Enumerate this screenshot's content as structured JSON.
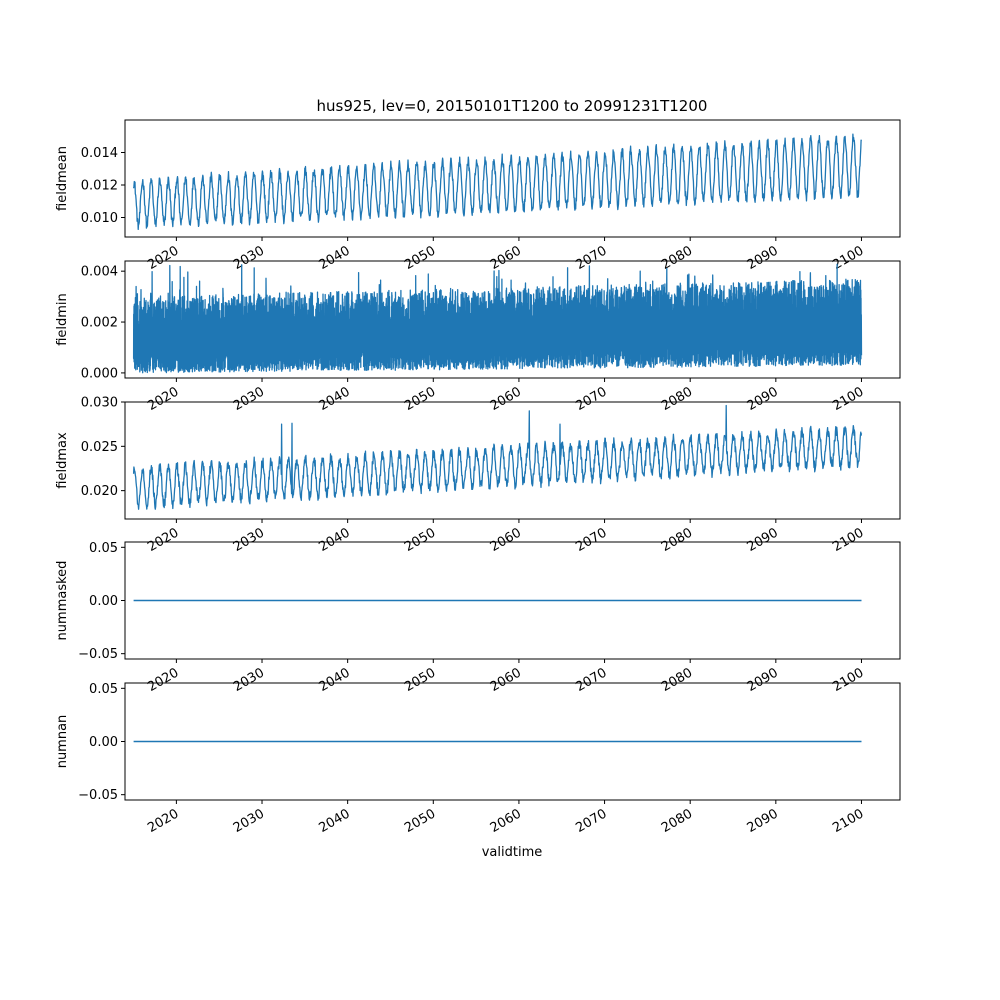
{
  "chart_data": {
    "type": "line",
    "title": "hus925, lev=0, 20150101T1200 to 20991231T1200",
    "xlabel": "validtime",
    "xlim": [
      2014.0,
      2104.5
    ],
    "x_ticks": [
      2020,
      2030,
      2040,
      2050,
      2060,
      2070,
      2080,
      2090,
      2100
    ],
    "x_tick_labels": [
      "2020",
      "2030",
      "2040",
      "2050",
      "2060",
      "2070",
      "2080",
      "2090",
      "2100"
    ],
    "x_range": [
      2015.0,
      2100.0
    ],
    "line_color": "#1f77b4",
    "panels": [
      {
        "ylabel": "fieldmean",
        "ylim": [
          0.0088,
          0.016
        ],
        "y_ticks": [
          0.01,
          0.012,
          0.014
        ],
        "y_tick_labels": [
          "0.010",
          "0.012",
          "0.014"
        ],
        "series": {
          "pattern": "seasonal_cycle",
          "trend_low": [
            0.0095,
            0.0114
          ],
          "trend_high": [
            0.0122,
            0.015
          ],
          "noise": 0.0003
        }
      },
      {
        "ylabel": "fieldmin",
        "ylim": [
          -0.0002,
          0.0044
        ],
        "y_ticks": [
          0.0,
          0.002,
          0.004
        ],
        "y_tick_labels": [
          "0.000",
          "0.002",
          "0.004"
        ],
        "series": {
          "pattern": "noisy_band",
          "band_low": [
            0.0,
            0.0003
          ],
          "band_high": [
            0.003,
            0.0037
          ],
          "peak": 0.0043
        }
      },
      {
        "ylabel": "fieldmax",
        "ylim": [
          0.0168,
          0.03
        ],
        "y_ticks": [
          0.02,
          0.025,
          0.03
        ],
        "y_tick_labels": [
          "0.020",
          "0.025",
          "0.030"
        ],
        "series": {
          "pattern": "seasonal_cycle",
          "trend_low": [
            0.0183,
            0.023
          ],
          "trend_high": [
            0.0225,
            0.027
          ],
          "noise": 0.0006,
          "spikes": [
            [
              2032.3,
              0.0275
            ],
            [
              2033.5,
              0.0276
            ],
            [
              2061.2,
              0.029
            ],
            [
              2084.2,
              0.0296
            ],
            [
              2064.8,
              0.0275
            ]
          ]
        }
      },
      {
        "ylabel": "nummasked",
        "ylim": [
          -0.055,
          0.055
        ],
        "y_ticks": [
          -0.05,
          0.0,
          0.05
        ],
        "y_tick_labels": [
          "−0.05",
          "0.00",
          "0.05"
        ],
        "series": {
          "pattern": "constant",
          "value": 0.0
        }
      },
      {
        "ylabel": "numnan",
        "ylim": [
          -0.055,
          0.055
        ],
        "y_ticks": [
          -0.05,
          0.0,
          0.05
        ],
        "y_tick_labels": [
          "−0.05",
          "0.00",
          "0.05"
        ],
        "series": {
          "pattern": "constant",
          "value": 0.0
        }
      }
    ]
  }
}
